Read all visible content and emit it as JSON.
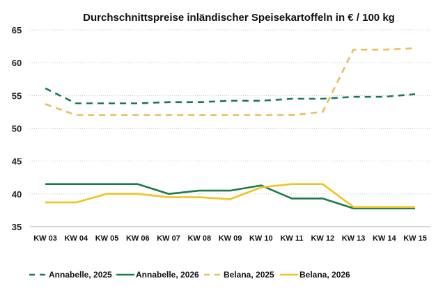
{
  "chart_data": {
    "type": "line",
    "title": "Durchschnittspreise inländischer Speisekartoffeln in € / 100 kg",
    "xlabel": "",
    "ylabel": "",
    "ylim": [
      35,
      65
    ],
    "yticks": [
      35,
      40,
      45,
      50,
      55,
      60,
      65
    ],
    "grid": true,
    "legend_position": "bottom",
    "categories": [
      "KW 03",
      "KW 04",
      "KW 05",
      "KW 06",
      "KW 07",
      "KW 08",
      "KW 09",
      "KW 10",
      "KW 11",
      "KW 12",
      "KW 13",
      "KW 14",
      "KW 15"
    ],
    "series": [
      {
        "name": "Annabelle, 2025",
        "color": "#1a7a4c",
        "style": "dashed",
        "values": [
          56.1,
          53.8,
          53.8,
          53.8,
          54.0,
          54.0,
          54.2,
          54.2,
          54.5,
          54.5,
          54.8,
          54.8,
          55.2
        ]
      },
      {
        "name": "Annabelle, 2026",
        "color": "#1a7a4c",
        "style": "solid",
        "values": [
          41.5,
          41.5,
          41.5,
          41.5,
          40.0,
          40.5,
          40.5,
          41.3,
          39.3,
          39.3,
          37.8,
          37.8,
          37.8
        ]
      },
      {
        "name": "Belana, 2025",
        "color": "#ebbd5a",
        "style": "dashed",
        "values": [
          53.7,
          52.0,
          52.0,
          52.0,
          52.0,
          52.0,
          52.0,
          52.0,
          52.0,
          52.5,
          62.0,
          62.0,
          62.2
        ]
      },
      {
        "name": "Belana, 2026",
        "color": "#f2c31f",
        "style": "solid",
        "values": [
          38.7,
          38.7,
          40.0,
          40.0,
          39.5,
          39.5,
          39.2,
          41.0,
          41.5,
          41.5,
          38.0,
          38.0,
          38.0
        ]
      }
    ]
  }
}
